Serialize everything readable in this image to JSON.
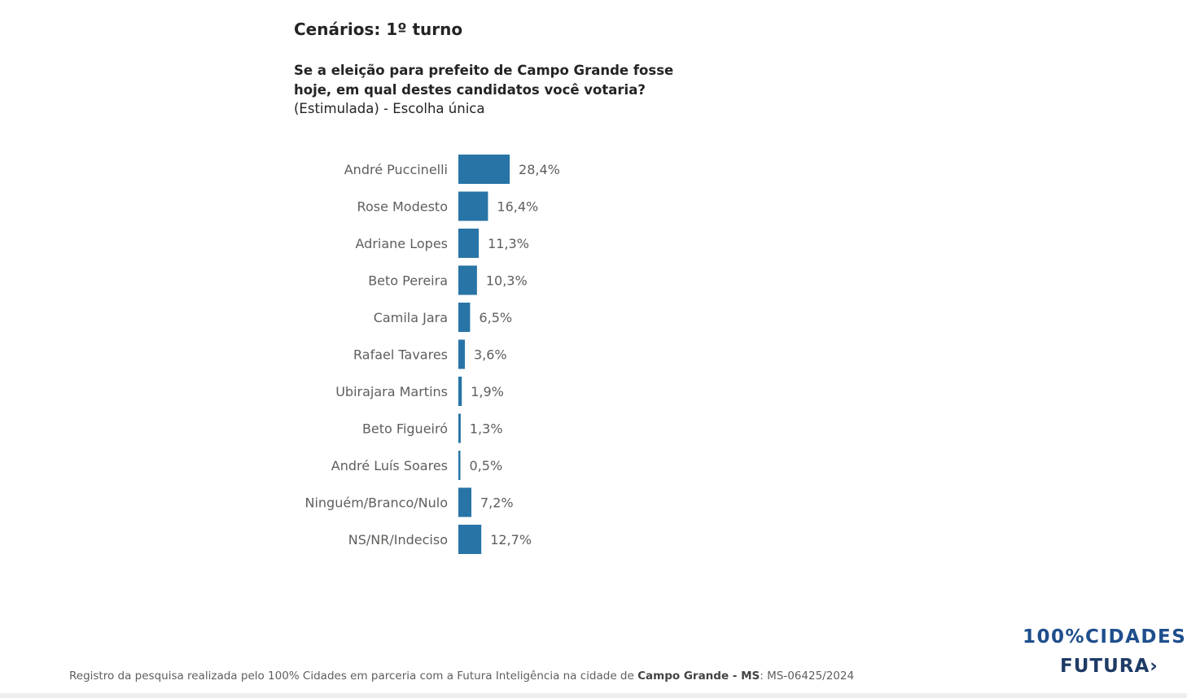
{
  "header": {
    "title": "Cenários: 1º turno",
    "question": "Se a eleição para prefeito de Campo Grande fosse hoje, em qual destes candidatos você votaria?",
    "subtitle": "(Estimulada) - Escolha única"
  },
  "chart_data": {
    "type": "bar",
    "orientation": "horizontal",
    "categories": [
      "André Puccinelli",
      "Rose Modesto",
      "Adriane Lopes",
      "Beto Pereira",
      "Camila Jara",
      "Rafael Tavares",
      "Ubirajara Martins",
      "Beto Figueiró",
      "André Luís Soares",
      "Ninguém/Branco/Nulo",
      "NS/NR/Indeciso"
    ],
    "values": [
      28.4,
      16.4,
      11.3,
      10.3,
      6.5,
      3.6,
      1.9,
      1.3,
      0.5,
      7.2,
      12.7
    ],
    "labels": [
      "28,4%",
      "16,4%",
      "11,3%",
      "10,3%",
      "6,5%",
      "3,6%",
      "1,9%",
      "1,3%",
      "0,5%",
      "7,2%",
      "12,7%"
    ],
    "color": "#2874a6",
    "unit": "%",
    "grid": false
  },
  "footer": {
    "text_before": "Registro da pesquisa realizada pelo 100% Cidades em parceria com a Futura Inteligência na cidade de ",
    "city": "Campo Grande - MS",
    "text_after": ": MS-06425/2024"
  },
  "logo": {
    "line1": "100%CIDADES",
    "line2": "FUTURA›"
  }
}
